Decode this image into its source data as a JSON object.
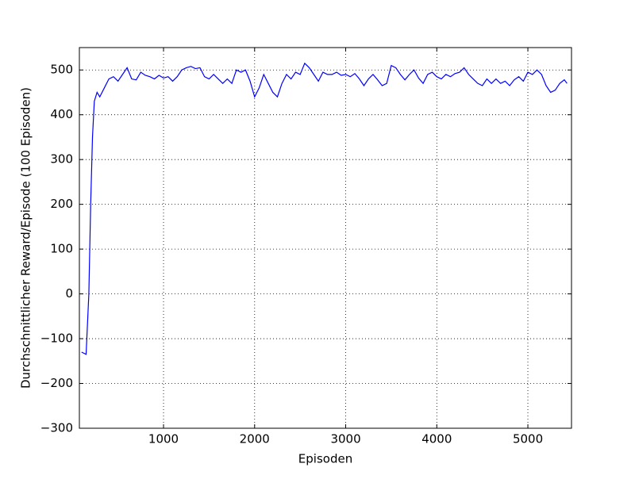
{
  "chart_data": {
    "type": "line",
    "xlabel": "Episoden",
    "ylabel": "Durchschnittlicher Reward/Episode (100 Episoden)",
    "xlim": [
      76,
      5479
    ],
    "ylim": [
      -300,
      550
    ],
    "xticks": [
      1000,
      2000,
      3000,
      4000,
      5000
    ],
    "yticks": [
      {
        "value": -300,
        "label": "−300"
      },
      {
        "value": -200,
        "label": "−200"
      },
      {
        "value": -100,
        "label": "−100"
      },
      0,
      100,
      200,
      300,
      400,
      500
    ],
    "grid": true,
    "series": [
      {
        "color": "#0000ff",
        "x": [
          100,
          150,
          180,
          200,
          220,
          240,
          270,
          300,
          350,
          400,
          450,
          500,
          550,
          600,
          650,
          700,
          750,
          800,
          850,
          900,
          950,
          1000,
          1050,
          1100,
          1150,
          1200,
          1250,
          1300,
          1350,
          1400,
          1450,
          1500,
          1550,
          1600,
          1650,
          1700,
          1750,
          1800,
          1850,
          1900,
          1950,
          2000,
          2050,
          2100,
          2150,
          2200,
          2250,
          2300,
          2350,
          2400,
          2450,
          2500,
          2550,
          2600,
          2650,
          2700,
          2750,
          2800,
          2850,
          2900,
          2950,
          3000,
          3050,
          3100,
          3150,
          3200,
          3250,
          3300,
          3350,
          3400,
          3450,
          3500,
          3550,
          3600,
          3650,
          3700,
          3750,
          3800,
          3850,
          3900,
          3950,
          4000,
          4050,
          4100,
          4150,
          4200,
          4250,
          4300,
          4350,
          4400,
          4450,
          4500,
          4550,
          4600,
          4650,
          4700,
          4750,
          4800,
          4850,
          4900,
          4950,
          5000,
          5050,
          5100,
          5150,
          5200,
          5250,
          5300,
          5350,
          5400,
          5430
        ],
        "values": [
          -130,
          -135,
          0,
          200,
          350,
          430,
          450,
          440,
          460,
          480,
          485,
          475,
          490,
          505,
          480,
          478,
          495,
          488,
          485,
          480,
          488,
          482,
          485,
          475,
          485,
          500,
          505,
          508,
          503,
          505,
          485,
          480,
          490,
          480,
          470,
          480,
          470,
          500,
          495,
          500,
          475,
          440,
          460,
          490,
          470,
          450,
          440,
          470,
          490,
          480,
          495,
          490,
          515,
          505,
          490,
          475,
          495,
          490,
          490,
          495,
          488,
          490,
          485,
          492,
          480,
          465,
          480,
          490,
          478,
          465,
          470,
          510,
          505,
          490,
          478,
          490,
          500,
          482,
          470,
          490,
          495,
          485,
          480,
          490,
          485,
          492,
          495,
          505,
          490,
          480,
          470,
          465,
          480,
          470,
          480,
          470,
          475,
          465,
          478,
          485,
          475,
          495,
          490,
          500,
          490,
          465,
          450,
          455,
          470,
          478,
          470
        ]
      }
    ]
  }
}
